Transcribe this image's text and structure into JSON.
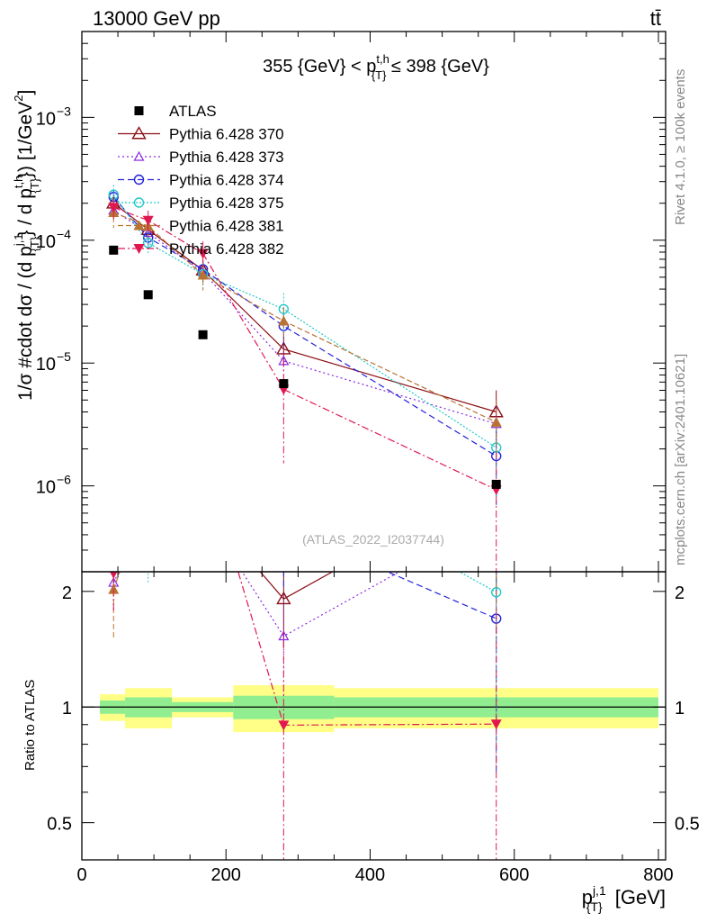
{
  "header": {
    "energy_label": "13000 GeV pp",
    "process_label": "tt̄"
  },
  "side_labels": {
    "rivet": "Rivet 4.1.0, ≥ 100k events",
    "mcplots": "mcplots.cern.ch [arXiv:2401.10621]"
  },
  "chart_data": {
    "type": "scatter",
    "title": "355 {GeV} < p_{T}^{t,h} ≤ 398 {GeV}",
    "title_parts": {
      "main": "355 {GeV} < p",
      "sub": "{T}",
      "sup": "t,h",
      "tail": " ≤ 398 {GeV}"
    },
    "watermark": "(ATLAS_2022_I2037744)",
    "ylabel": "1/σ #cdot dσ / (d p_{T}^{j,1} / d p_{T}^{t,h}) [1/GeV²]",
    "ylabel_parts": {
      "a": "1/σ #cdot dσ / (d p",
      "sub1": "{T}",
      "sup1": "j,1",
      "b": "} / d p",
      "sub2": "{T}",
      "sup2": "t,h",
      "c": "}) [1/GeV",
      "sup3": "2",
      "d": "]"
    },
    "ratio_ylabel": "Ratio to ATLAS",
    "xlabel": "p_{T}^{j,1} [GeV]",
    "xlabel_parts": {
      "a": "p",
      "sub": "{T}",
      "sup": "j,1",
      "b": " [GeV]"
    },
    "xlim": [
      0,
      810
    ],
    "ylim": [
      2e-07,
      0.005
    ],
    "ratio_ylim": [
      0.4,
      2.25
    ],
    "x_ticks": [
      0,
      200,
      400,
      600,
      800
    ],
    "y_ticks": [
      {
        "value": 1e-06,
        "mant": "10",
        "exp": "−6"
      },
      {
        "value": 1e-05,
        "mant": "10",
        "exp": "−5"
      },
      {
        "value": 0.0001,
        "mant": "10",
        "exp": "−4"
      },
      {
        "value": 0.001,
        "mant": "10",
        "exp": "−3"
      }
    ],
    "ratio_ticks": [
      {
        "value": 0.5,
        "label": "0.5"
      },
      {
        "value": 1,
        "label": "1"
      },
      {
        "value": 2,
        "label": "2"
      }
    ],
    "data": {
      "name": "ATLAS",
      "x": [
        44,
        92,
        168,
        280,
        575
      ],
      "y": [
        8.3e-05,
        3.6e-05,
        1.7e-05,
        6.8e-06,
        1.03e-06
      ]
    },
    "bands": [
      {
        "x0": 25,
        "x1": 60,
        "stat": 0.04,
        "tot": 0.08
      },
      {
        "x0": 60,
        "x1": 125,
        "stat": 0.06,
        "tot": 0.12
      },
      {
        "x0": 125,
        "x1": 210,
        "stat": 0.03,
        "tot": 0.06
      },
      {
        "x0": 210,
        "x1": 350,
        "stat": 0.07,
        "tot": 0.14
      },
      {
        "x0": 350,
        "x1": 800,
        "stat": 0.06,
        "tot": 0.12
      }
    ],
    "series": [
      {
        "name": "Pythia 6.428 370",
        "color": "#8b0f16",
        "dash": "",
        "marker": "triangle-open",
        "x": [
          44,
          92,
          168,
          280,
          575
        ],
        "y": [
          0.0002,
          0.000122,
          5.7e-05,
          1.3e-05,
          4e-06
        ],
        "yerr": [
          0.15,
          0.15,
          0.2,
          0.25,
          0.5
        ]
      },
      {
        "name": "Pythia 6.428 373",
        "color": "#8a2be2",
        "dash": "2,3",
        "marker": "triangle-open-small",
        "x": [
          44,
          92,
          168,
          280,
          575
        ],
        "y": [
          0.000175,
          0.000115,
          5.5e-05,
          1.04e-05,
          3.2e-06
        ],
        "yerr": [
          0.15,
          0.15,
          0.2,
          0.3,
          0.5
        ]
      },
      {
        "name": "Pythia 6.428 374",
        "color": "#2222dd",
        "dash": "7,4",
        "marker": "circle-open",
        "x": [
          44,
          92,
          168,
          280,
          575
        ],
        "y": [
          0.000225,
          0.000105,
          5.8e-05,
          2e-05,
          1.75e-06
        ],
        "yerr": [
          0.15,
          0.15,
          0.2,
          0.3,
          0.6
        ]
      },
      {
        "name": "Pythia 6.428 375",
        "color": "#22c8c8",
        "dash": "2,2",
        "marker": "circle-open",
        "x": [
          44,
          92,
          168,
          280,
          575
        ],
        "y": [
          0.000235,
          9.5e-05,
          5.3e-05,
          2.75e-05,
          2.05e-06
        ],
        "yerr": [
          0.2,
          0.2,
          0.25,
          0.35,
          0.6
        ]
      },
      {
        "name": "Pythia 6.428 381",
        "color": "#b87333",
        "dash": "6,3",
        "marker": "triangle-filled",
        "x": [
          44,
          92,
          168,
          280,
          575
        ],
        "y": [
          0.000168,
          0.00013,
          5.2e-05,
          2.2e-05,
          3.3e-06
        ],
        "yerr": [
          0.25,
          0.2,
          0.25,
          0.3,
          0.5
        ]
      },
      {
        "name": "Pythia 6.428 382",
        "color": "#e0184f",
        "dash": "8,3,2,3",
        "marker": "triangle-down-filled",
        "x": [
          44,
          92,
          168,
          280,
          575
        ],
        "y": [
          0.000185,
          0.000145,
          7.8e-05,
          6.1e-06,
          9.3e-07
        ],
        "yerr": [
          0.2,
          0.2,
          0.25,
          0.75,
          1.0
        ]
      }
    ]
  }
}
